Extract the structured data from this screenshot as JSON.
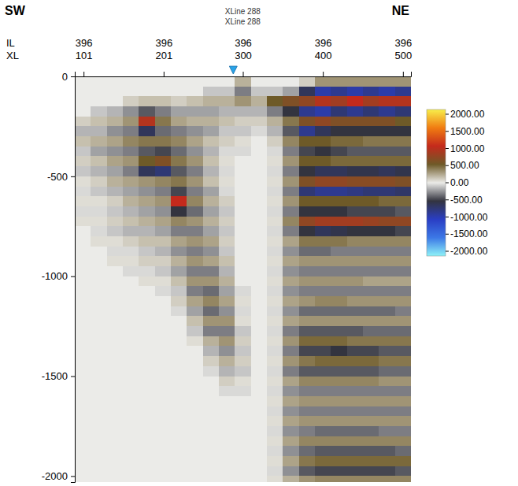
{
  "chart_data": {
    "type": "heatmap",
    "left_label": "SW",
    "right_label": "NE",
    "row_labels": [
      "IL",
      "XL"
    ],
    "il_ticks": [
      396,
      396,
      396,
      396,
      396
    ],
    "marker_line": {
      "value": 288,
      "labels": [
        "XLine 288",
        "XLine 288"
      ]
    },
    "xlim": [
      90,
      510
    ],
    "xticks": [
      101,
      201,
      300,
      400,
      500
    ],
    "ylim": [
      0,
      -2030
    ],
    "yticks": [
      0,
      -500,
      -1000,
      -1500,
      -2000
    ],
    "x": [
      100,
      120,
      140,
      160,
      180,
      200,
      220,
      240,
      260,
      280,
      300,
      320,
      340,
      360,
      380,
      400,
      420,
      440,
      460,
      480,
      500
    ],
    "y": [
      -25,
      -75,
      -125,
      -175,
      -225,
      -275,
      -325,
      -375,
      -425,
      -475,
      -525,
      -575,
      -625,
      -675,
      -725,
      -775,
      -825,
      -875,
      -925,
      -975,
      -1025,
      -1075,
      -1125,
      -1175,
      -1225,
      -1275,
      -1325,
      -1375,
      -1425,
      -1475,
      -1525,
      -1575,
      -1625,
      -1675,
      -1725,
      -1775,
      -1825,
      -1875,
      -1925,
      -1975,
      -2025
    ],
    "cells": [
      [
        0,
        0,
        0,
        0,
        0,
        0,
        0,
        0,
        0,
        0,
        200,
        0,
        0,
        0,
        100,
        300,
        300,
        300,
        300,
        300,
        300
      ],
      [
        0,
        0,
        0,
        0,
        0,
        0,
        0,
        0,
        -100,
        -100,
        -300,
        -100,
        -100,
        -200,
        -600,
        -900,
        -800,
        -900,
        -800,
        -900,
        -800
      ],
      [
        0,
        0,
        0,
        100,
        150,
        150,
        100,
        150,
        200,
        200,
        300,
        200,
        500,
        600,
        700,
        900,
        800,
        1000,
        800,
        900,
        900
      ],
      [
        0,
        -100,
        -150,
        -250,
        -400,
        -300,
        -200,
        -200,
        -200,
        -150,
        -150,
        -150,
        -300,
        -500,
        -800,
        -900,
        -700,
        -800,
        -700,
        -800,
        -700
      ],
      [
        100,
        150,
        200,
        300,
        900,
        400,
        250,
        200,
        200,
        150,
        100,
        100,
        200,
        400,
        600,
        700,
        600,
        600,
        600,
        600,
        500
      ],
      [
        -150,
        -150,
        -250,
        -300,
        -600,
        -350,
        -300,
        -250,
        -200,
        -100,
        -100,
        -50,
        -150,
        -400,
        -800,
        -600,
        -500,
        -500,
        -500,
        -500,
        -500
      ],
      [
        150,
        200,
        250,
        350,
        400,
        400,
        350,
        250,
        150,
        100,
        50,
        0,
        100,
        350,
        500,
        500,
        450,
        450,
        400,
        400,
        400
      ],
      [
        -100,
        -200,
        -250,
        -300,
        -400,
        -450,
        -350,
        -250,
        -150,
        -50,
        -50,
        0,
        -50,
        -300,
        -450,
        -500,
        -450,
        -400,
        -400,
        -400,
        -400
      ],
      [
        100,
        150,
        250,
        300,
        500,
        600,
        400,
        300,
        150,
        50,
        0,
        0,
        50,
        300,
        500,
        500,
        450,
        450,
        450,
        450,
        450
      ],
      [
        -100,
        -150,
        -200,
        -300,
        -600,
        -700,
        -400,
        -300,
        -150,
        -50,
        0,
        0,
        -50,
        -300,
        -500,
        -600,
        -600,
        -550,
        -550,
        -600,
        -550
      ],
      [
        50,
        100,
        200,
        250,
        300,
        350,
        400,
        300,
        150,
        50,
        0,
        0,
        50,
        300,
        600,
        700,
        700,
        650,
        650,
        650,
        600
      ],
      [
        -50,
        -100,
        -150,
        -200,
        -250,
        -300,
        -450,
        -300,
        -200,
        -50,
        0,
        0,
        -50,
        -300,
        -700,
        -800,
        -800,
        -750,
        -700,
        -700,
        -650
      ],
      [
        50,
        50,
        100,
        200,
        250,
        300,
        1000,
        350,
        200,
        100,
        0,
        0,
        50,
        300,
        500,
        500,
        500,
        500,
        500,
        450,
        450
      ],
      [
        -50,
        -50,
        -100,
        -150,
        -200,
        -250,
        -500,
        -350,
        -200,
        -100,
        0,
        0,
        -50,
        -300,
        -500,
        -500,
        -500,
        -450,
        -450,
        -450,
        -400
      ],
      [
        50,
        50,
        100,
        150,
        200,
        250,
        350,
        300,
        200,
        100,
        0,
        0,
        50,
        350,
        700,
        800,
        800,
        800,
        750,
        700,
        700
      ],
      [
        0,
        -50,
        -100,
        -150,
        -150,
        -200,
        -300,
        -300,
        -200,
        -100,
        0,
        0,
        -50,
        -300,
        -500,
        -600,
        -550,
        -500,
        -500,
        -500,
        -450
      ],
      [
        0,
        50,
        50,
        100,
        150,
        150,
        250,
        300,
        250,
        100,
        0,
        0,
        50,
        250,
        400,
        400,
        400,
        350,
        350,
        350,
        350
      ],
      [
        0,
        0,
        -50,
        -50,
        -100,
        -150,
        -250,
        -300,
        -250,
        -100,
        0,
        0,
        -50,
        -250,
        -350,
        -350,
        -300,
        -300,
        -300,
        -300,
        -300
      ],
      [
        0,
        0,
        50,
        50,
        100,
        100,
        200,
        300,
        250,
        150,
        0,
        0,
        50,
        250,
        300,
        300,
        300,
        300,
        300,
        300,
        300
      ],
      [
        0,
        0,
        0,
        -50,
        -50,
        -100,
        -200,
        -300,
        -300,
        -150,
        0,
        0,
        -50,
        -250,
        -300,
        -300,
        -300,
        -300,
        -300,
        -300,
        -300
      ],
      [
        0,
        0,
        0,
        0,
        50,
        50,
        150,
        300,
        300,
        200,
        0,
        0,
        50,
        250,
        300,
        300,
        300,
        300,
        250,
        250,
        250
      ],
      [
        0,
        0,
        0,
        0,
        0,
        -50,
        -100,
        -300,
        -350,
        -200,
        -50,
        0,
        -50,
        -250,
        -300,
        -300,
        -300,
        -300,
        -300,
        -300,
        -300
      ],
      [
        0,
        0,
        0,
        0,
        0,
        0,
        100,
        250,
        350,
        250,
        50,
        0,
        50,
        250,
        300,
        350,
        350,
        300,
        300,
        300,
        300
      ],
      [
        0,
        0,
        0,
        0,
        0,
        0,
        -50,
        -200,
        -350,
        -250,
        -50,
        0,
        -50,
        -250,
        -350,
        -350,
        -350,
        -350,
        -350,
        -350,
        -300
      ],
      [
        0,
        0,
        0,
        0,
        0,
        0,
        0,
        150,
        300,
        300,
        50,
        0,
        50,
        250,
        300,
        300,
        300,
        300,
        300,
        300,
        300
      ],
      [
        0,
        0,
        0,
        0,
        0,
        0,
        0,
        -100,
        -300,
        -300,
        -100,
        0,
        -50,
        -300,
        -400,
        -400,
        -400,
        -400,
        -350,
        -350,
        -350
      ],
      [
        0,
        0,
        0,
        0,
        0,
        0,
        0,
        50,
        200,
        300,
        100,
        0,
        50,
        300,
        450,
        450,
        450,
        400,
        400,
        400,
        400
      ],
      [
        0,
        0,
        0,
        0,
        0,
        0,
        0,
        0,
        -150,
        -250,
        -100,
        0,
        -50,
        -300,
        -450,
        -450,
        -500,
        -450,
        -450,
        -400,
        -400
      ],
      [
        0,
        0,
        0,
        0,
        0,
        0,
        0,
        0,
        100,
        200,
        100,
        0,
        50,
        300,
        400,
        450,
        450,
        450,
        450,
        400,
        400
      ],
      [
        0,
        0,
        0,
        0,
        0,
        0,
        0,
        0,
        -50,
        -150,
        -100,
        0,
        -50,
        -300,
        -400,
        -400,
        -400,
        -400,
        -400,
        -350,
        -350
      ],
      [
        0,
        0,
        0,
        0,
        0,
        0,
        0,
        0,
        0,
        100,
        50,
        0,
        50,
        250,
        350,
        350,
        350,
        350,
        350,
        300,
        300
      ],
      [
        0,
        0,
        0,
        0,
        0,
        0,
        0,
        0,
        0,
        -50,
        -50,
        0,
        -50,
        -250,
        -300,
        -300,
        -300,
        -300,
        -300,
        -300,
        -300
      ],
      [
        0,
        0,
        0,
        0,
        0,
        0,
        0,
        0,
        0,
        0,
        0,
        0,
        50,
        250,
        300,
        300,
        300,
        300,
        300,
        300,
        300
      ],
      [
        0,
        0,
        0,
        0,
        0,
        0,
        0,
        0,
        0,
        0,
        0,
        0,
        -50,
        -250,
        -300,
        -300,
        -300,
        -300,
        -300,
        -300,
        -300
      ],
      [
        0,
        0,
        0,
        0,
        0,
        0,
        0,
        0,
        0,
        0,
        0,
        0,
        50,
        250,
        300,
        300,
        300,
        300,
        300,
        300,
        300
      ],
      [
        0,
        0,
        0,
        0,
        0,
        0,
        0,
        0,
        0,
        0,
        0,
        0,
        -50,
        -250,
        -300,
        -350,
        -350,
        -350,
        -350,
        -300,
        -300
      ],
      [
        0,
        0,
        0,
        0,
        0,
        0,
        0,
        0,
        0,
        0,
        0,
        0,
        50,
        250,
        350,
        350,
        350,
        350,
        350,
        350,
        350
      ],
      [
        0,
        0,
        0,
        0,
        0,
        0,
        0,
        0,
        0,
        0,
        0,
        0,
        -50,
        -250,
        -350,
        -400,
        -400,
        -400,
        -400,
        -400,
        -350
      ],
      [
        0,
        0,
        0,
        0,
        0,
        0,
        0,
        0,
        0,
        0,
        0,
        0,
        50,
        250,
        400,
        450,
        450,
        450,
        450,
        450,
        450
      ],
      [
        0,
        0,
        0,
        0,
        0,
        0,
        0,
        0,
        0,
        0,
        0,
        0,
        -50,
        -250,
        -400,
        -450,
        -450,
        -450,
        -450,
        -450,
        -400
      ],
      [
        0,
        0,
        0,
        0,
        0,
        0,
        0,
        0,
        0,
        0,
        0,
        0,
        50,
        200,
        300,
        350,
        350,
        350,
        350,
        350,
        350
      ]
    ],
    "colorbar": {
      "range": [
        -2000,
        2000
      ],
      "ticks": [
        {
          "value": 2000,
          "label": "2000.00"
        },
        {
          "value": 1500,
          "label": "1500.00"
        },
        {
          "value": 1000,
          "label": "1000.00"
        },
        {
          "value": 500,
          "label": "500.00"
        },
        {
          "value": 0,
          "label": "0.00"
        },
        {
          "value": -500,
          "label": "-500.00"
        },
        {
          "value": -1000,
          "label": "-1000.00"
        },
        {
          "value": -1500,
          "label": "-1500.00"
        },
        {
          "value": -2000,
          "label": "-2000.00"
        }
      ]
    }
  }
}
